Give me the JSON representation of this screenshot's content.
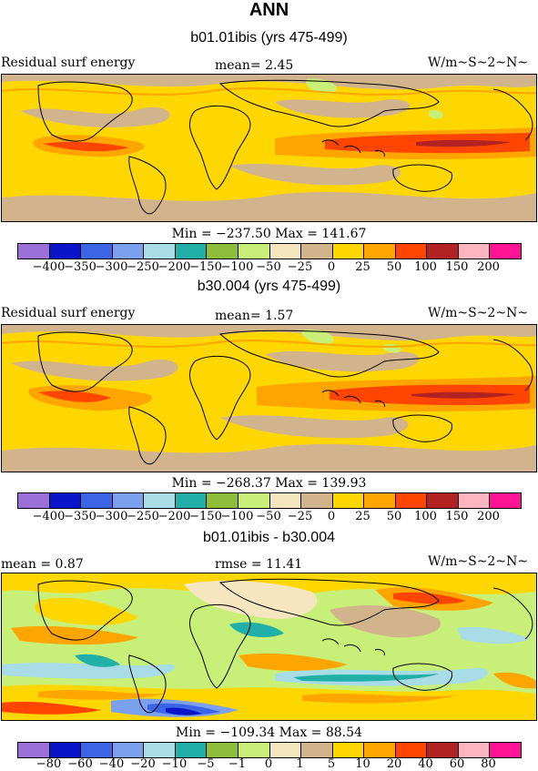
{
  "main_title": "ANN",
  "panels": [
    {
      "subtitle": "b01.01ibis (yrs 475-499)",
      "left_label": "Residual surf energy",
      "mid_label": "mean=   2.45",
      "right_label": "W/m~S~2~N~",
      "minmax": "Min = −237.50 Max = 141.67",
      "ticks": [
        "−400",
        "−350",
        "−300",
        "−250",
        "−200",
        "−150",
        "−100",
        "−50",
        "−25",
        "0",
        "25",
        "50",
        "100",
        "150",
        "200"
      ]
    },
    {
      "subtitle": "b30.004 (yrs 475-499)",
      "left_label": "Residual surf energy",
      "mid_label": "mean=   1.57",
      "right_label": "W/m~S~2~N~",
      "minmax": "Min = −268.37 Max = 139.93",
      "ticks": [
        "−400",
        "−350",
        "−300",
        "−250",
        "−200",
        "−150",
        "−100",
        "−50",
        "−25",
        "0",
        "25",
        "50",
        "100",
        "150",
        "200"
      ]
    },
    {
      "subtitle": "b01.01ibis - b30.004",
      "left_label": "mean =    0.87",
      "mid_label": "rmse =  11.41",
      "right_label": "W/m~S~2~N~",
      "minmax": "Min = −109.34 Max =  88.54",
      "ticks": [
        "−80",
        "−60",
        "−40",
        "−20",
        "−10",
        "−5",
        "−1",
        "0",
        "1",
        "5",
        "10",
        "20",
        "40",
        "60",
        "80"
      ]
    }
  ],
  "colors": {
    "palette": [
      "#9b6fd8",
      "#0a14c8",
      "#3c64e6",
      "#7aa0ee",
      "#a8dce6",
      "#20b0a8",
      "#8cbe3c",
      "#c8f078",
      "#f5e6c0",
      "#d2b48c",
      "#ffd700",
      "#ffa500",
      "#ff4500",
      "#b22222",
      "#ffb6c1",
      "#ff1493"
    ],
    "background_field": "#ffd700",
    "coastline": "#000000"
  }
}
